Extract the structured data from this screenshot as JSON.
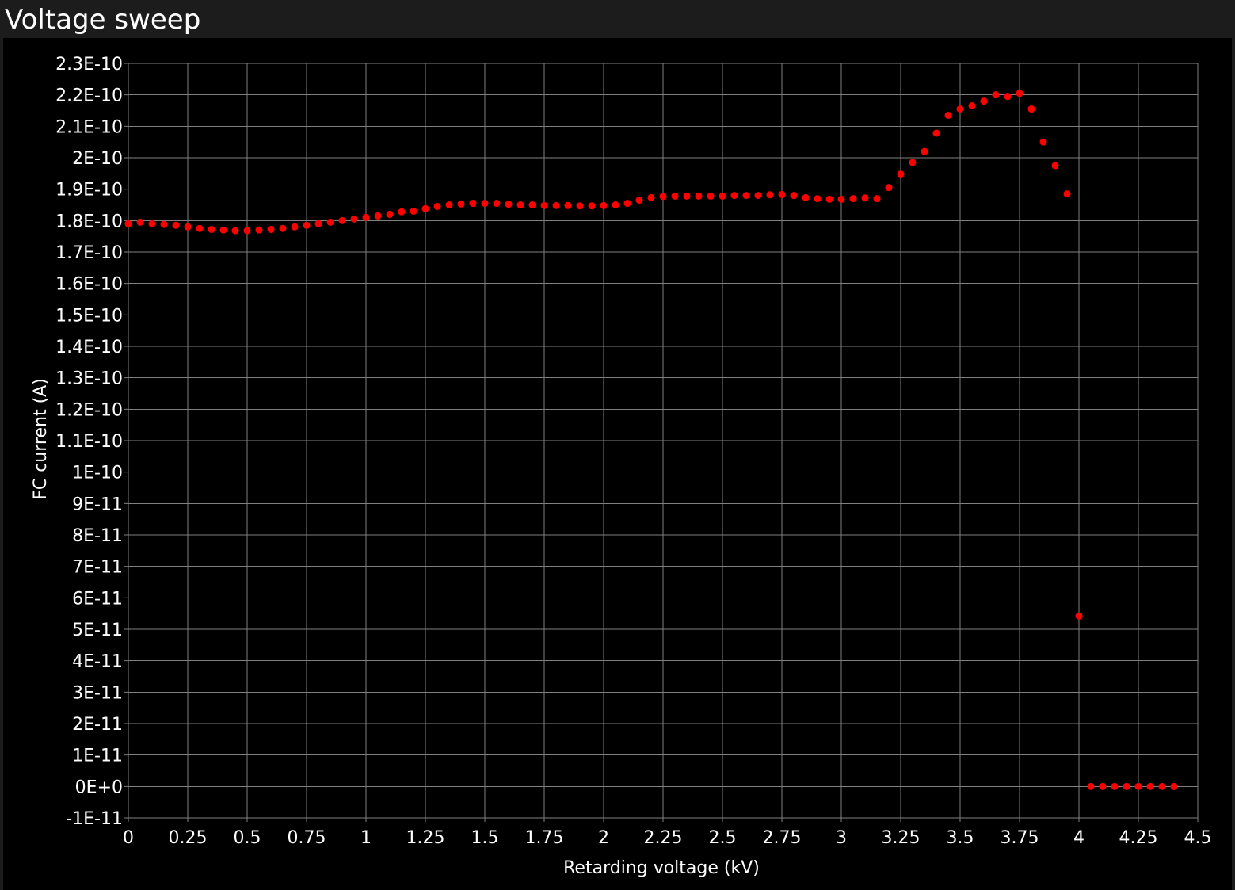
{
  "window": {
    "title": "Voltage sweep"
  },
  "colors": {
    "background": "#000000",
    "grid": "#808080",
    "axis_text": "#ffffff",
    "marker": "#ff0000",
    "title_bar": "#1c1c1c"
  },
  "chart_data": {
    "type": "scatter",
    "xlabel": "Retarding voltage (kV)",
    "ylabel": "FC current (A)",
    "xlim": [
      0,
      4.5
    ],
    "ylim": [
      -1e-11,
      2.3e-10
    ],
    "x_ticks": [
      "0",
      "0.25",
      "0.5",
      "0.75",
      "1",
      "1.25",
      "1.5",
      "1.75",
      "2",
      "2.25",
      "2.5",
      "2.75",
      "3",
      "3.25",
      "3.5",
      "3.75",
      "4",
      "4.25",
      "4.5"
    ],
    "y_ticks": [
      "-1E-11",
      "0E+0",
      "1E-11",
      "2E-11",
      "3E-11",
      "4E-11",
      "5E-11",
      "6E-11",
      "7E-11",
      "8E-11",
      "9E-11",
      "1E-10",
      "1.1E-10",
      "1.2E-10",
      "1.3E-10",
      "1.4E-10",
      "1.5E-10",
      "1.6E-10",
      "1.7E-10",
      "1.8E-10",
      "1.9E-10",
      "2E-10",
      "2.1E-10",
      "2.2E-10",
      "2.3E-10"
    ],
    "grid": true,
    "legend": "none",
    "x": [
      0,
      0.05,
      0.1,
      0.15,
      0.2,
      0.25,
      0.3,
      0.35,
      0.4,
      0.45,
      0.5,
      0.55,
      0.6,
      0.65,
      0.7,
      0.75,
      0.8,
      0.85,
      0.9,
      0.95,
      1,
      1.05,
      1.1,
      1.15,
      1.2,
      1.25,
      1.3,
      1.35,
      1.4,
      1.45,
      1.5,
      1.55,
      1.6,
      1.65,
      1.7,
      1.75,
      1.8,
      1.85,
      1.9,
      1.95,
      2,
      2.05,
      2.1,
      2.15,
      2.2,
      2.25,
      2.3,
      2.35,
      2.4,
      2.45,
      2.5,
      2.55,
      2.6,
      2.65,
      2.7,
      2.75,
      2.8,
      2.85,
      2.9,
      2.95,
      3,
      3.05,
      3.1,
      3.15,
      3.2,
      3.25,
      3.3,
      3.35,
      3.4,
      3.45,
      3.5,
      3.55,
      3.6,
      3.65,
      3.7,
      3.75,
      3.8,
      3.85,
      3.9,
      3.95,
      4,
      4.05,
      4.1,
      4.15,
      4.2,
      4.25,
      4.3,
      4.35,
      4.4
    ],
    "y": [
      1.79e-10,
      1.795e-10,
      1.79e-10,
      1.788e-10,
      1.785e-10,
      1.78e-10,
      1.775e-10,
      1.772e-10,
      1.77e-10,
      1.768e-10,
      1.768e-10,
      1.77e-10,
      1.772e-10,
      1.775e-10,
      1.78e-10,
      1.785e-10,
      1.79e-10,
      1.795e-10,
      1.8e-10,
      1.805e-10,
      1.81e-10,
      1.815e-10,
      1.82e-10,
      1.828e-10,
      1.83e-10,
      1.838e-10,
      1.845e-10,
      1.85e-10,
      1.853e-10,
      1.855e-10,
      1.855e-10,
      1.855e-10,
      1.852e-10,
      1.85e-10,
      1.85e-10,
      1.848e-10,
      1.848e-10,
      1.848e-10,
      1.847e-10,
      1.847e-10,
      1.848e-10,
      1.85e-10,
      1.855e-10,
      1.865e-10,
      1.873e-10,
      1.877e-10,
      1.878e-10,
      1.878e-10,
      1.878e-10,
      1.878e-10,
      1.878e-10,
      1.88e-10,
      1.88e-10,
      1.88e-10,
      1.882e-10,
      1.883e-10,
      1.88e-10,
      1.873e-10,
      1.87e-10,
      1.868e-10,
      1.868e-10,
      1.87e-10,
      1.872e-10,
      1.87e-10,
      1.905e-10,
      1.948e-10,
      1.985e-10,
      2.02e-10,
      2.078e-10,
      2.135e-10,
      2.155e-10,
      2.165e-10,
      2.18e-10,
      2.2e-10,
      2.195e-10,
      2.205e-10,
      2.155e-10,
      2.05e-10,
      1.975e-10,
      1.885e-10,
      5.42e-11,
      0,
      0,
      0,
      0,
      0,
      0,
      0,
      0
    ]
  }
}
